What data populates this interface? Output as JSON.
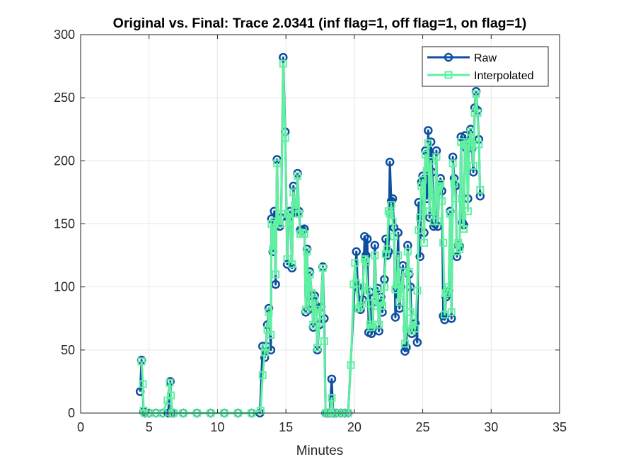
{
  "chart_data": {
    "type": "line",
    "title": "Original vs. Final: Trace 2.0341 (inf flag=1, off flag=1, on flag=1)",
    "xlabel": "Minutes",
    "ylabel": "",
    "xlim": [
      0,
      35
    ],
    "ylim": [
      0,
      300
    ],
    "xticks": [
      0,
      5,
      10,
      15,
      20,
      25,
      30,
      35
    ],
    "yticks": [
      0,
      50,
      100,
      150,
      200,
      250,
      300
    ],
    "grid": true,
    "legend_position": "top-right",
    "series": [
      {
        "name": "Raw",
        "color": "#0c4ea0",
        "marker": "circle",
        "points": [
          [
            4.35,
            17
          ],
          [
            4.45,
            42
          ],
          [
            4.6,
            1
          ],
          [
            4.7,
            0
          ],
          [
            5,
            0
          ],
          [
            5.5,
            0
          ],
          [
            6,
            0
          ],
          [
            6.4,
            0
          ],
          [
            6.55,
            25
          ],
          [
            6.65,
            0
          ],
          [
            6.8,
            0
          ],
          [
            7.5,
            0
          ],
          [
            8.5,
            0
          ],
          [
            9.5,
            0
          ],
          [
            10.5,
            0
          ],
          [
            11.5,
            0
          ],
          [
            12.5,
            0
          ],
          [
            13.1,
            0
          ],
          [
            13.3,
            53
          ],
          [
            13.45,
            44
          ],
          [
            13.55,
            53
          ],
          [
            13.65,
            70
          ],
          [
            13.75,
            83
          ],
          [
            13.9,
            50
          ],
          [
            13.95,
            154
          ],
          [
            14.05,
            128
          ],
          [
            14.15,
            160
          ],
          [
            14.25,
            102
          ],
          [
            14.35,
            201
          ],
          [
            14.45,
            150
          ],
          [
            14.55,
            148
          ],
          [
            14.65,
            155
          ],
          [
            14.8,
            282
          ],
          [
            14.95,
            223
          ],
          [
            15.1,
            118
          ],
          [
            15.2,
            155
          ],
          [
            15.3,
            160
          ],
          [
            15.45,
            115
          ],
          [
            15.55,
            180
          ],
          [
            15.65,
            159
          ],
          [
            15.75,
            160
          ],
          [
            15.85,
            190
          ],
          [
            15.95,
            160
          ],
          [
            16.05,
            145
          ],
          [
            16.2,
            145
          ],
          [
            16.35,
            146
          ],
          [
            16.45,
            80
          ],
          [
            16.55,
            130
          ],
          [
            16.65,
            82
          ],
          [
            16.75,
            112
          ],
          [
            16.9,
            93
          ],
          [
            17.0,
            68
          ],
          [
            17.1,
            93
          ],
          [
            17.2,
            85
          ],
          [
            17.3,
            50
          ],
          [
            17.45,
            70
          ],
          [
            17.55,
            84
          ],
          [
            17.7,
            116
          ],
          [
            17.8,
            75
          ],
          [
            17.9,
            0
          ],
          [
            18.05,
            0
          ],
          [
            18.2,
            0
          ],
          [
            18.35,
            27
          ],
          [
            18.45,
            0
          ],
          [
            18.55,
            0
          ],
          [
            18.7,
            0
          ],
          [
            19.0,
            0
          ],
          [
            19.3,
            0
          ],
          [
            19.55,
            0
          ],
          [
            20.15,
            128
          ],
          [
            20.25,
            100
          ],
          [
            20.45,
            82
          ],
          [
            20.6,
            90
          ],
          [
            20.75,
            140
          ],
          [
            20.85,
            125
          ],
          [
            20.95,
            138
          ],
          [
            21.05,
            64
          ],
          [
            21.15,
            96
          ],
          [
            21.25,
            63
          ],
          [
            21.35,
            68
          ],
          [
            21.5,
            133
          ],
          [
            21.6,
            88
          ],
          [
            21.7,
            99
          ],
          [
            21.8,
            65
          ],
          [
            21.95,
            92
          ],
          [
            22.05,
            80
          ],
          [
            22.2,
            106
          ],
          [
            22.3,
            138
          ],
          [
            22.4,
            125
          ],
          [
            22.5,
            128
          ],
          [
            22.6,
            199
          ],
          [
            22.7,
            168
          ],
          [
            22.8,
            170
          ],
          [
            22.9,
            147
          ],
          [
            23.0,
            76
          ],
          [
            23.1,
            100
          ],
          [
            23.2,
            143
          ],
          [
            23.3,
            83
          ],
          [
            23.4,
            100
          ],
          [
            23.55,
            117
          ],
          [
            23.7,
            49
          ],
          [
            23.8,
            52
          ],
          [
            23.9,
            133
          ],
          [
            24.0,
            110
          ],
          [
            24.1,
            100
          ],
          [
            24.2,
            63
          ],
          [
            24.3,
            68
          ],
          [
            24.45,
            71
          ],
          [
            24.6,
            56
          ],
          [
            24.7,
            167
          ],
          [
            24.8,
            124
          ],
          [
            24.9,
            183
          ],
          [
            25.0,
            188
          ],
          [
            25.1,
            143
          ],
          [
            25.2,
            208
          ],
          [
            25.3,
            170
          ],
          [
            25.4,
            224
          ],
          [
            25.5,
            155
          ],
          [
            25.6,
            215
          ],
          [
            25.7,
            191
          ],
          [
            25.8,
            148
          ],
          [
            25.9,
            150
          ],
          [
            26.0,
            208
          ],
          [
            26.1,
            148
          ],
          [
            26.2,
            178
          ],
          [
            26.3,
            186
          ],
          [
            26.4,
            176
          ],
          [
            26.5,
            77
          ],
          [
            26.6,
            74
          ],
          [
            26.7,
            92
          ],
          [
            26.8,
            95
          ],
          [
            26.9,
            97
          ],
          [
            27.0,
            160
          ],
          [
            27.1,
            75
          ],
          [
            27.2,
            203
          ],
          [
            27.3,
            186
          ],
          [
            27.4,
            180
          ],
          [
            27.5,
            124
          ],
          [
            27.6,
            133
          ],
          [
            27.7,
            132
          ],
          [
            27.8,
            219
          ],
          [
            27.9,
            151
          ],
          [
            28.0,
            149
          ],
          [
            28.1,
            220
          ],
          [
            28.2,
            210
          ],
          [
            28.3,
            170
          ],
          [
            28.4,
            215
          ],
          [
            28.5,
            225
          ],
          [
            28.6,
            210
          ],
          [
            28.7,
            191
          ],
          [
            28.8,
            242
          ],
          [
            28.9,
            255
          ],
          [
            29.0,
            240
          ],
          [
            29.1,
            217
          ],
          [
            29.2,
            172
          ]
        ]
      },
      {
        "name": "Interpolated",
        "color": "#5ff0a0",
        "marker": "square",
        "points": [
          [
            4.45,
            41
          ],
          [
            4.55,
            23
          ],
          [
            4.6,
            2
          ],
          [
            4.7,
            0
          ],
          [
            5,
            0
          ],
          [
            5.5,
            0
          ],
          [
            6,
            0
          ],
          [
            6.35,
            10
          ],
          [
            6.5,
            24
          ],
          [
            6.6,
            14
          ],
          [
            6.7,
            0
          ],
          [
            6.8,
            0
          ],
          [
            7.5,
            0
          ],
          [
            8.5,
            0
          ],
          [
            9.5,
            0
          ],
          [
            10.5,
            0
          ],
          [
            11.5,
            0
          ],
          [
            12.5,
            0
          ],
          [
            13.15,
            2
          ],
          [
            13.3,
            30
          ],
          [
            13.45,
            48
          ],
          [
            13.55,
            52
          ],
          [
            13.65,
            66
          ],
          [
            13.75,
            80
          ],
          [
            13.9,
            62
          ],
          [
            13.95,
            150
          ],
          [
            14.05,
            130
          ],
          [
            14.15,
            152
          ],
          [
            14.25,
            110
          ],
          [
            14.35,
            198
          ],
          [
            14.45,
            152
          ],
          [
            14.55,
            150
          ],
          [
            14.65,
            158
          ],
          [
            14.8,
            277
          ],
          [
            14.95,
            218
          ],
          [
            15.1,
            122
          ],
          [
            15.2,
            158
          ],
          [
            15.3,
            158
          ],
          [
            15.45,
            118
          ],
          [
            15.55,
            175
          ],
          [
            15.65,
            165
          ],
          [
            15.75,
            162
          ],
          [
            15.85,
            188
          ],
          [
            15.95,
            158
          ],
          [
            16.05,
            142
          ],
          [
            16.2,
            143
          ],
          [
            16.35,
            142
          ],
          [
            16.45,
            82
          ],
          [
            16.55,
            128
          ],
          [
            16.65,
            85
          ],
          [
            16.75,
            110
          ],
          [
            16.9,
            95
          ],
          [
            17.0,
            70
          ],
          [
            17.1,
            90
          ],
          [
            17.2,
            82
          ],
          [
            17.3,
            52
          ],
          [
            17.45,
            72
          ],
          [
            17.55,
            80
          ],
          [
            17.7,
            115
          ],
          [
            17.8,
            57
          ],
          [
            17.9,
            0
          ],
          [
            18.05,
            0
          ],
          [
            18.2,
            0
          ],
          [
            18.35,
            12
          ],
          [
            18.45,
            0
          ],
          [
            18.55,
            0
          ],
          [
            18.7,
            0
          ],
          [
            19.0,
            0
          ],
          [
            19.3,
            0
          ],
          [
            19.55,
            0
          ],
          [
            19.75,
            38
          ],
          [
            19.95,
            102
          ],
          [
            20.05,
            119
          ],
          [
            20.15,
            103
          ],
          [
            20.3,
            83
          ],
          [
            20.45,
            85
          ],
          [
            20.6,
            100
          ],
          [
            20.75,
            122
          ],
          [
            20.85,
            120
          ],
          [
            20.95,
            97
          ],
          [
            21.05,
            87
          ],
          [
            21.15,
            70
          ],
          [
            21.25,
            68
          ],
          [
            21.35,
            70
          ],
          [
            21.5,
            125
          ],
          [
            21.6,
            85
          ],
          [
            21.7,
            95
          ],
          [
            21.8,
            70
          ],
          [
            21.95,
            88
          ],
          [
            22.05,
            85
          ],
          [
            22.2,
            100
          ],
          [
            22.3,
            126
          ],
          [
            22.4,
            130
          ],
          [
            22.5,
            160
          ],
          [
            22.6,
            158
          ],
          [
            22.7,
            165
          ],
          [
            22.8,
            152
          ],
          [
            22.9,
            140
          ],
          [
            23.0,
            98
          ],
          [
            23.1,
            102
          ],
          [
            23.2,
            125
          ],
          [
            23.3,
            88
          ],
          [
            23.4,
            95
          ],
          [
            23.55,
            112
          ],
          [
            23.7,
            55
          ],
          [
            23.8,
            67
          ],
          [
            23.9,
            128
          ],
          [
            24.0,
            112
          ],
          [
            24.1,
            80
          ],
          [
            24.2,
            65
          ],
          [
            24.3,
            72
          ],
          [
            24.45,
            67
          ],
          [
            24.6,
            97
          ],
          [
            24.7,
            145
          ],
          [
            24.8,
            155
          ],
          [
            24.9,
            180
          ],
          [
            25.0,
            185
          ],
          [
            25.1,
            135
          ],
          [
            25.2,
            205
          ],
          [
            25.3,
            192
          ],
          [
            25.4,
            214
          ],
          [
            25.5,
            160
          ],
          [
            25.6,
            200
          ],
          [
            25.7,
            175
          ],
          [
            25.8,
            152
          ],
          [
            25.9,
            160
          ],
          [
            26.0,
            203
          ],
          [
            26.1,
            152
          ],
          [
            26.2,
            180
          ],
          [
            26.3,
            182
          ],
          [
            26.4,
            168
          ],
          [
            26.5,
            135
          ],
          [
            26.6,
            78
          ],
          [
            26.7,
            95
          ],
          [
            26.8,
            97
          ],
          [
            26.9,
            100
          ],
          [
            27.0,
            158
          ],
          [
            27.1,
            80
          ],
          [
            27.2,
            198
          ],
          [
            27.3,
            182
          ],
          [
            27.4,
            170
          ],
          [
            27.5,
            128
          ],
          [
            27.6,
            135
          ],
          [
            27.7,
            130
          ],
          [
            27.8,
            215
          ],
          [
            27.9,
            157
          ],
          [
            28.0,
            146
          ],
          [
            28.1,
            213
          ],
          [
            28.2,
            212
          ],
          [
            28.3,
            160
          ],
          [
            28.4,
            215
          ],
          [
            28.5,
            223
          ],
          [
            28.6,
            212
          ],
          [
            28.7,
            196
          ],
          [
            28.8,
            238
          ],
          [
            28.9,
            253
          ],
          [
            29.0,
            238
          ],
          [
            29.1,
            213
          ],
          [
            29.2,
            177
          ]
        ]
      }
    ]
  }
}
